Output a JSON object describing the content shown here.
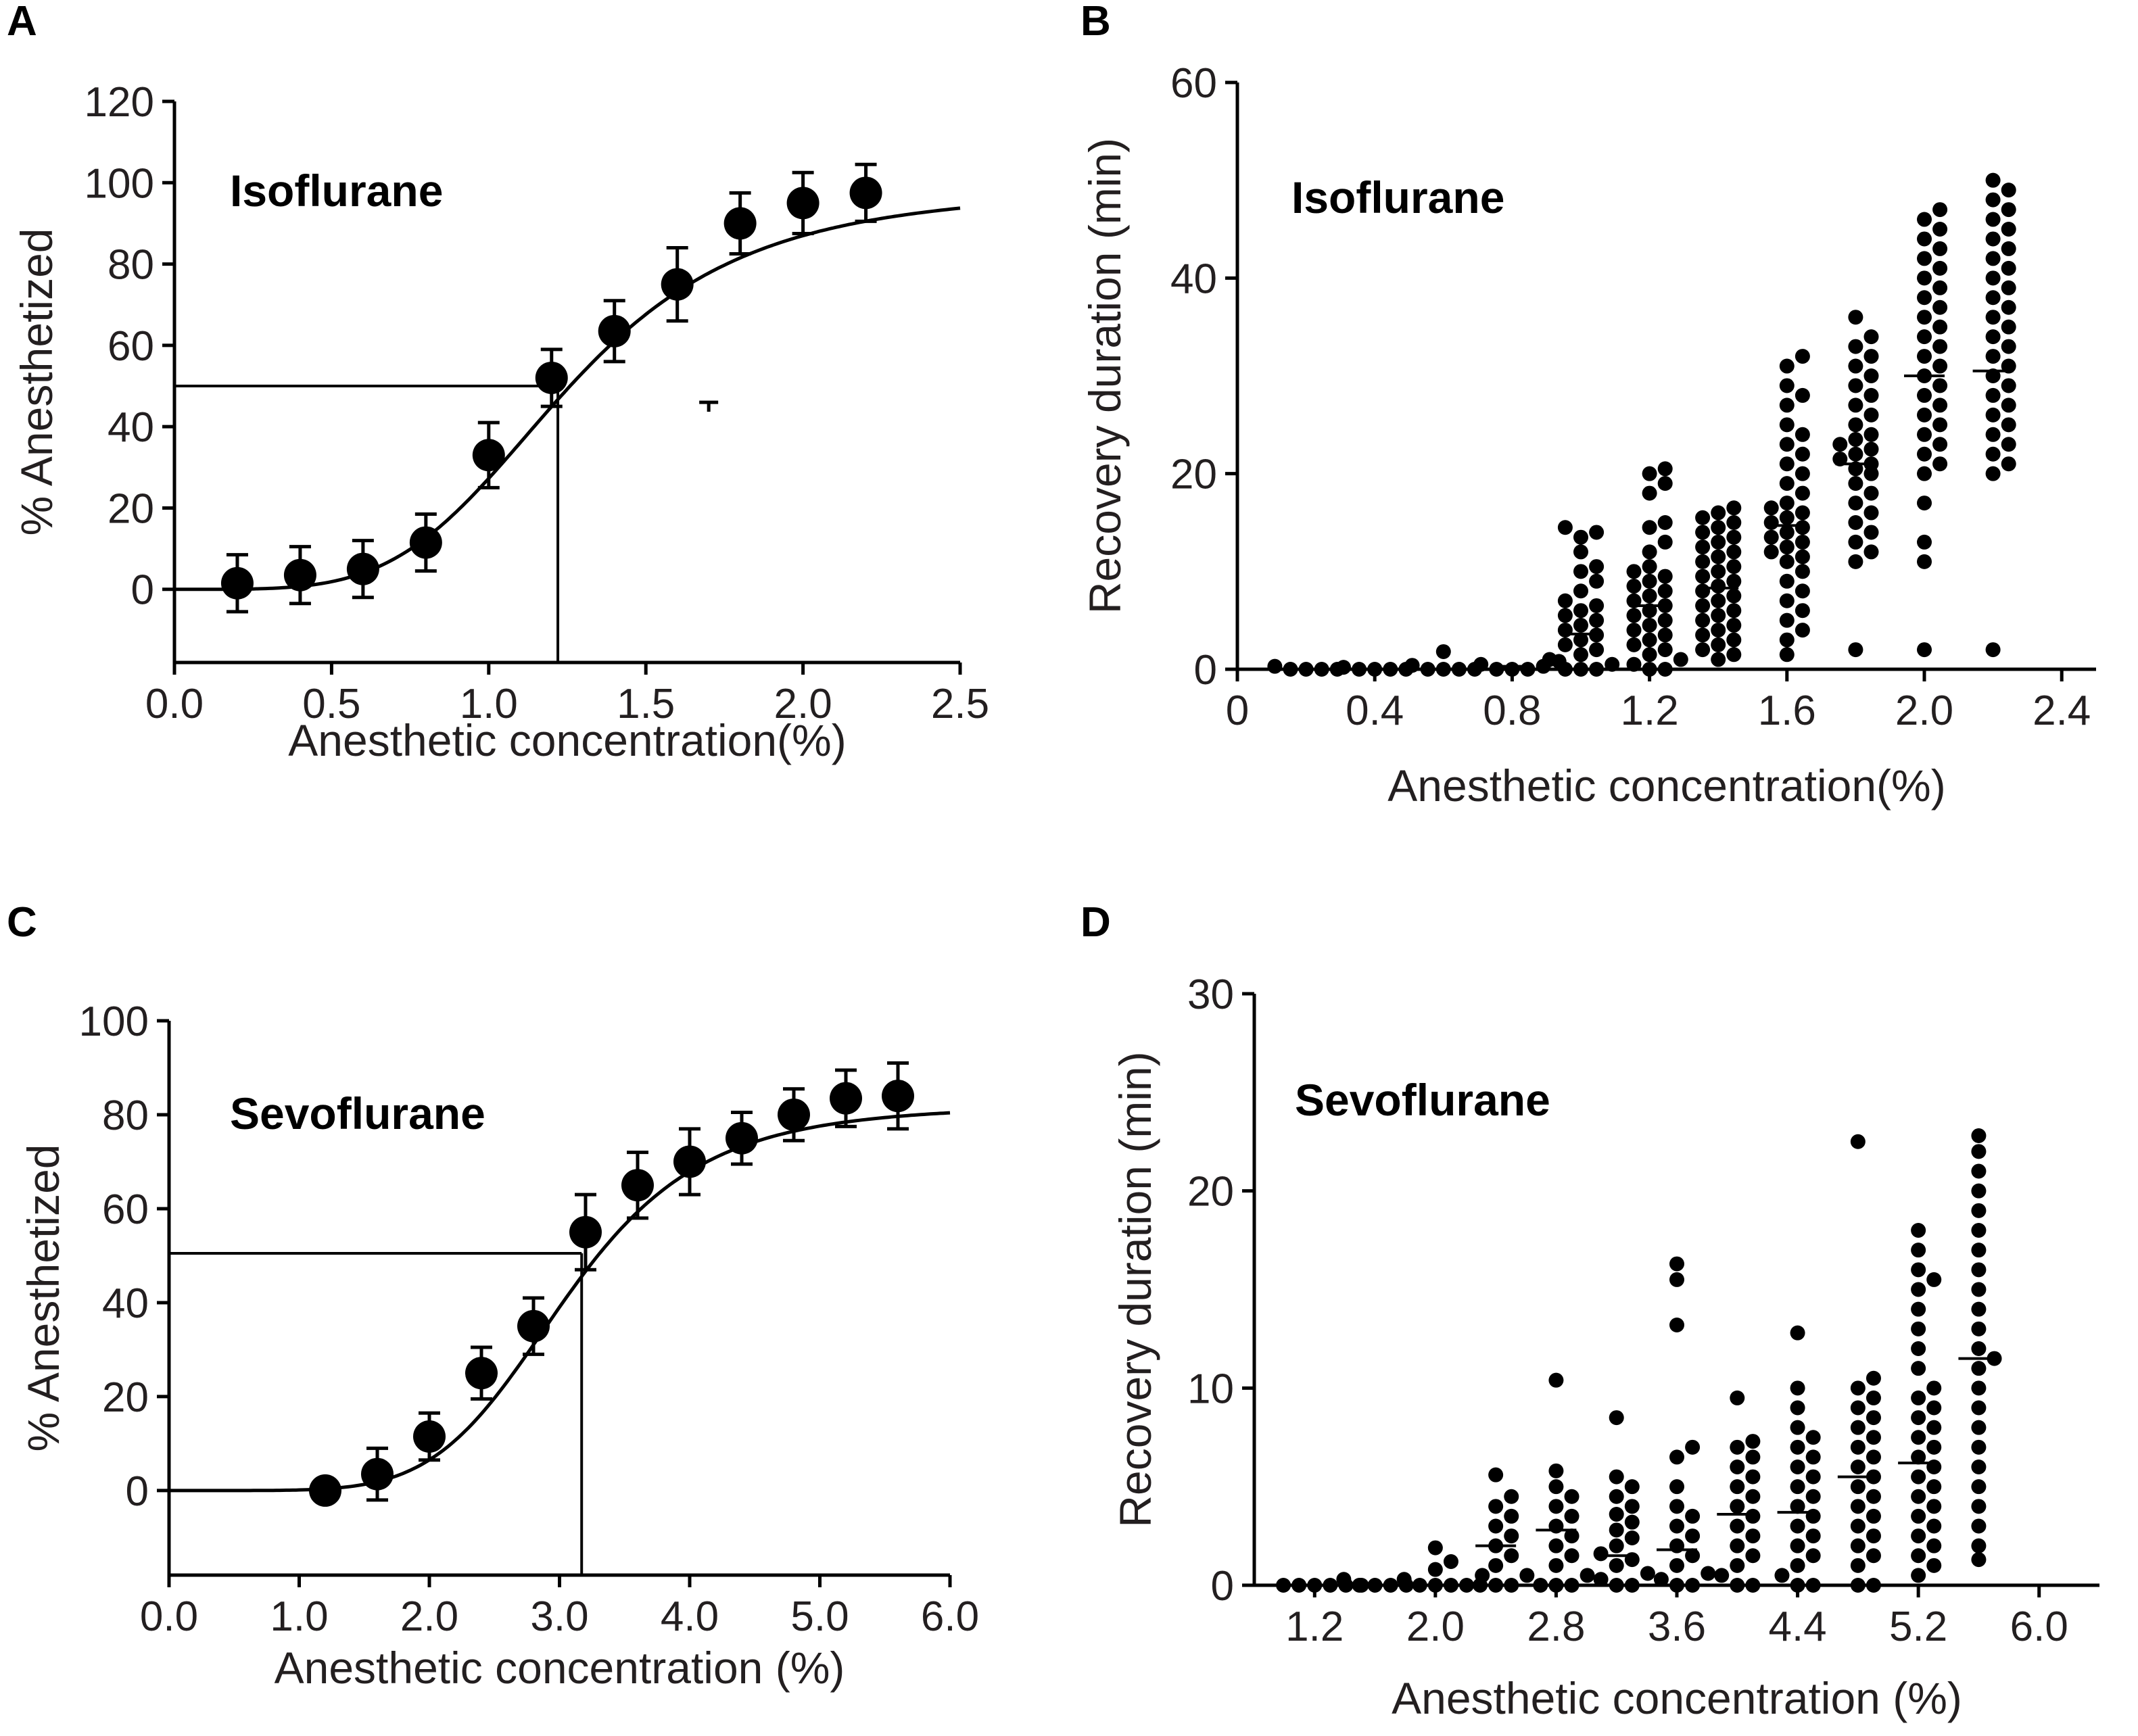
{
  "panels": {
    "A": "A",
    "B": "B",
    "C": "C",
    "D": "D"
  },
  "chart_data": [
    {
      "id": "A",
      "type": "scatter",
      "subtype": "dose-response with error bars and sigmoid fit",
      "annotation": "Isoflurane",
      "xlabel": "Anesthetic concentration(%)",
      "ylabel": "% Anesthetized",
      "xlim": [
        0,
        2.5
      ],
      "ylim": [
        -18,
        120
      ],
      "xticks": [
        0.0,
        0.5,
        1.0,
        1.5,
        2.0,
        2.5
      ],
      "xtick_labels": [
        "0.0",
        "0.5",
        "1.0",
        "1.5",
        "2.0",
        "2.5"
      ],
      "yticks": [
        0,
        20,
        40,
        60,
        80,
        100,
        120
      ],
      "ytick_labels": [
        "0",
        "20",
        "40",
        "60",
        "80",
        "100",
        "120"
      ],
      "x": [
        0.2,
        0.4,
        0.6,
        0.8,
        1.0,
        1.2,
        1.4,
        1.6,
        1.8,
        2.0,
        2.2
      ],
      "y": [
        1.5,
        3.5,
        5,
        11.5,
        33,
        52,
        63.5,
        75,
        90,
        95,
        97.5
      ],
      "err": [
        7,
        7,
        7,
        7,
        8,
        7,
        7.5,
        9,
        7.5,
        7.5,
        7
      ],
      "fit": {
        "bottom": 0,
        "top": 98.5,
        "ec50": 1.25,
        "hill": 4.3
      },
      "ec50_line": {
        "x": 1.22,
        "y": 50
      },
      "stray_mark": {
        "x": 1.7,
        "y": 46
      }
    },
    {
      "id": "B",
      "type": "scatter",
      "subtype": "dot plot with medians",
      "annotation": "Isoflurane",
      "xlabel": "Anesthetic concentration(%)",
      "ylabel": "Recovery duration (min)",
      "xlim": [
        0,
        2.5
      ],
      "ylim": [
        0,
        60
      ],
      "xticks": [
        0,
        0.4,
        0.8,
        1.2,
        1.6,
        2.0,
        2.4
      ],
      "xtick_labels": [
        "0",
        "0.4",
        "0.8",
        "1.2",
        "1.6",
        "2.0",
        "2.4"
      ],
      "yticks": [
        0,
        20,
        40,
        60
      ],
      "ytick_labels": [
        "0",
        "20",
        "40",
        "60"
      ],
      "groups": [
        {
          "x": 0.2,
          "median": 0,
          "values": [
            0,
            0,
            0,
            0,
            0.3
          ]
        },
        {
          "x": 0.4,
          "median": 0,
          "values": [
            0,
            0,
            0,
            0,
            0.2
          ]
        },
        {
          "x": 0.6,
          "median": 0,
          "values": [
            0,
            0,
            0,
            0,
            0.4,
            1.8
          ]
        },
        {
          "x": 0.8,
          "median": 0.3,
          "values": [
            0,
            0,
            0,
            0.3,
            0.5,
            0.8
          ]
        },
        {
          "x": 1.0,
          "median": 3.6,
          "values": [
            0,
            0,
            0,
            0.5,
            1,
            1.5,
            2,
            2.5,
            3,
            3.5,
            4,
            4.5,
            5,
            5.5,
            6,
            6.5,
            7,
            8,
            9,
            10,
            10.5,
            12,
            13.5,
            14,
            14.5
          ]
        },
        {
          "x": 1.2,
          "median": 6.5,
          "values": [
            0,
            0,
            0.5,
            1,
            1.5,
            2,
            2.5,
            3,
            3.5,
            4,
            4.5,
            5,
            5.5,
            6,
            6.5,
            7,
            7.5,
            8,
            8.5,
            9,
            9.5,
            10,
            10.5,
            12,
            13,
            14.5,
            15,
            18,
            19,
            20,
            20.5
          ]
        },
        {
          "x": 1.4,
          "median": 8.3,
          "values": [
            1,
            1.5,
            2,
            2.5,
            3,
            3.5,
            4,
            4.5,
            5,
            5.5,
            6,
            6.5,
            7,
            7.5,
            8,
            8.5,
            9,
            9.5,
            10,
            10.5,
            11,
            11.5,
            12,
            12.5,
            13,
            13.5,
            14,
            14.5,
            15,
            15.5,
            16,
            16.5
          ]
        },
        {
          "x": 1.6,
          "median": 14.7,
          "values": [
            1.5,
            3,
            4,
            5,
            6,
            7,
            8,
            9,
            10,
            11,
            11.5,
            12,
            12.5,
            13,
            13.5,
            14,
            14.5,
            15,
            15.5,
            16,
            16.5,
            17,
            18,
            19,
            20,
            21,
            22,
            23,
            24,
            25,
            27,
            28,
            29,
            31,
            32
          ]
        },
        {
          "x": 1.8,
          "median": 21,
          "values": [
            2,
            11,
            12,
            13,
            14,
            15,
            16,
            17,
            18,
            19,
            20,
            20.5,
            21,
            21.5,
            22,
            22.5,
            23,
            23.5,
            24,
            25,
            26,
            27,
            28,
            29,
            30,
            31,
            32,
            33,
            34,
            36
          ]
        },
        {
          "x": 2.0,
          "median": 30,
          "values": [
            2,
            11,
            13,
            17,
            20,
            21,
            22,
            23,
            24,
            25,
            26,
            27,
            28,
            29,
            30,
            31,
            32,
            33,
            34,
            35,
            36,
            37,
            38,
            39,
            40,
            41,
            42,
            43,
            44,
            45,
            46,
            47
          ]
        },
        {
          "x": 2.2,
          "median": 30.5,
          "values": [
            2,
            20,
            21,
            22,
            23,
            24,
            25,
            26,
            27,
            28,
            29,
            30,
            31,
            32,
            33,
            34,
            35,
            36,
            37,
            38,
            39,
            40,
            41,
            42,
            43,
            44,
            45,
            46,
            47,
            48,
            49,
            50
          ]
        }
      ]
    },
    {
      "id": "C",
      "type": "scatter",
      "subtype": "dose-response with error bars and sigmoid fit",
      "annotation": "Sevoflurane",
      "xlabel": "Anesthetic concentration (%)",
      "ylabel": "% Anesthetized",
      "xlim": [
        0,
        6
      ],
      "ylim": [
        -18,
        100
      ],
      "xticks": [
        0,
        1,
        2,
        3,
        4,
        5,
        6
      ],
      "xtick_labels": [
        "0.0",
        "1.0",
        "2.0",
        "3.0",
        "4.0",
        "5.0",
        "6.0"
      ],
      "yticks": [
        0,
        20,
        40,
        60,
        80,
        100
      ],
      "ytick_labels": [
        "0",
        "20",
        "40",
        "60",
        "80",
        "100"
      ],
      "x": [
        1.2,
        1.6,
        2.0,
        2.4,
        2.8,
        3.2,
        3.6,
        4.0,
        4.4,
        4.8,
        5.2,
        5.6
      ],
      "y": [
        0,
        3.5,
        11.5,
        25,
        35,
        55,
        65,
        70,
        75,
        80,
        83.5,
        84
      ],
      "err": [
        0,
        5.5,
        5,
        5.5,
        6,
        8,
        7,
        7,
        5.5,
        5.5,
        6,
        7
      ],
      "fit": {
        "bottom": 0,
        "top": 82,
        "ec50": 3.05,
        "hill": 5.8
      },
      "ec50_line": {
        "x": 3.17,
        "y": 50.5
      }
    },
    {
      "id": "D",
      "type": "scatter",
      "subtype": "dot plot with medians",
      "annotation": "Sevoflurane",
      "xlabel": "Anesthetic concentration (%)",
      "ylabel": "Recovery duration (min)",
      "xlim": [
        0.8,
        6.4
      ],
      "ylim": [
        0,
        30
      ],
      "xticks": [
        1.2,
        2.0,
        2.8,
        3.6,
        4.4,
        5.2,
        6.0
      ],
      "xtick_labels": [
        "1.2",
        "2.0",
        "2.8",
        "3.6",
        "4.4",
        "5.2",
        "6.0"
      ],
      "yticks": [
        0,
        10,
        20,
        30
      ],
      "ytick_labels": [
        "0",
        "10",
        "20",
        "30"
      ],
      "groups": [
        {
          "x": 1.2,
          "median": 0,
          "values": [
            0,
            0,
            0,
            0,
            0,
            0
          ]
        },
        {
          "x": 1.6,
          "median": 0,
          "values": [
            0,
            0,
            0,
            0,
            0.3
          ]
        },
        {
          "x": 2.0,
          "median": 0,
          "values": [
            0,
            0,
            0,
            0,
            0.3,
            0.5,
            0.8,
            1.2,
            1.9
          ]
        },
        {
          "x": 2.4,
          "median": 2,
          "values": [
            0,
            0,
            0,
            0.5,
            1,
            1.5,
            2,
            2.5,
            3,
            3.5,
            4,
            4.5,
            5.6
          ]
        },
        {
          "x": 2.8,
          "median": 2.8,
          "values": [
            0,
            0,
            0,
            0.5,
            1,
            1.5,
            2,
            2.5,
            3,
            3.5,
            4,
            4.5,
            5,
            5.8,
            10.4
          ]
        },
        {
          "x": 3.2,
          "median": 1.5,
          "values": [
            0,
            0,
            0.3,
            0.6,
            1,
            1.3,
            1.6,
            2,
            2.4,
            2.8,
            3.2,
            3.6,
            4,
            4.5,
            5,
            5.5,
            8.5
          ]
        },
        {
          "x": 3.6,
          "median": 1.8,
          "values": [
            0,
            0,
            0.3,
            0.6,
            1,
            1.5,
            2,
            2.5,
            3,
            3.5,
            4,
            5,
            6.5,
            7,
            13.2,
            15.5,
            16.3
          ]
        },
        {
          "x": 4.0,
          "median": 3.6,
          "values": [
            0,
            0,
            0.5,
            1,
            1.5,
            2,
            2.5,
            3,
            3.5,
            4,
            4.5,
            5,
            5.5,
            6,
            6.5,
            7,
            7.3,
            9.5
          ]
        },
        {
          "x": 4.4,
          "median": 3.7,
          "values": [
            0,
            0,
            0.5,
            1,
            1.5,
            2,
            2.5,
            3,
            3.5,
            4,
            4.5,
            5,
            5.5,
            6,
            6.5,
            7,
            7.5,
            8,
            9,
            10,
            12.8
          ]
        },
        {
          "x": 4.8,
          "median": 5.5,
          "values": [
            0,
            0,
            1,
            1.5,
            2,
            2.5,
            3,
            3.5,
            4,
            4.5,
            5,
            5.5,
            6,
            6.5,
            7,
            7.5,
            8,
            8.5,
            9,
            9.5,
            10,
            10.5,
            22.5
          ]
        },
        {
          "x": 5.2,
          "median": 6.2,
          "values": [
            0.5,
            1,
            1.5,
            2,
            2.5,
            3,
            3.5,
            4,
            4.5,
            5,
            5.5,
            6,
            6.5,
            7,
            7.5,
            8,
            8.5,
            9,
            9.5,
            10,
            11,
            12,
            13,
            14,
            15,
            15.5,
            16,
            17,
            18
          ]
        },
        {
          "x": 5.6,
          "median": 11.5,
          "values": [
            1.3,
            2,
            3,
            4,
            5,
            6,
            7,
            8,
            9,
            10,
            11,
            11.5,
            12,
            13,
            14,
            15,
            16,
            17,
            18,
            19,
            20,
            21,
            22,
            22.8
          ]
        }
      ]
    }
  ]
}
